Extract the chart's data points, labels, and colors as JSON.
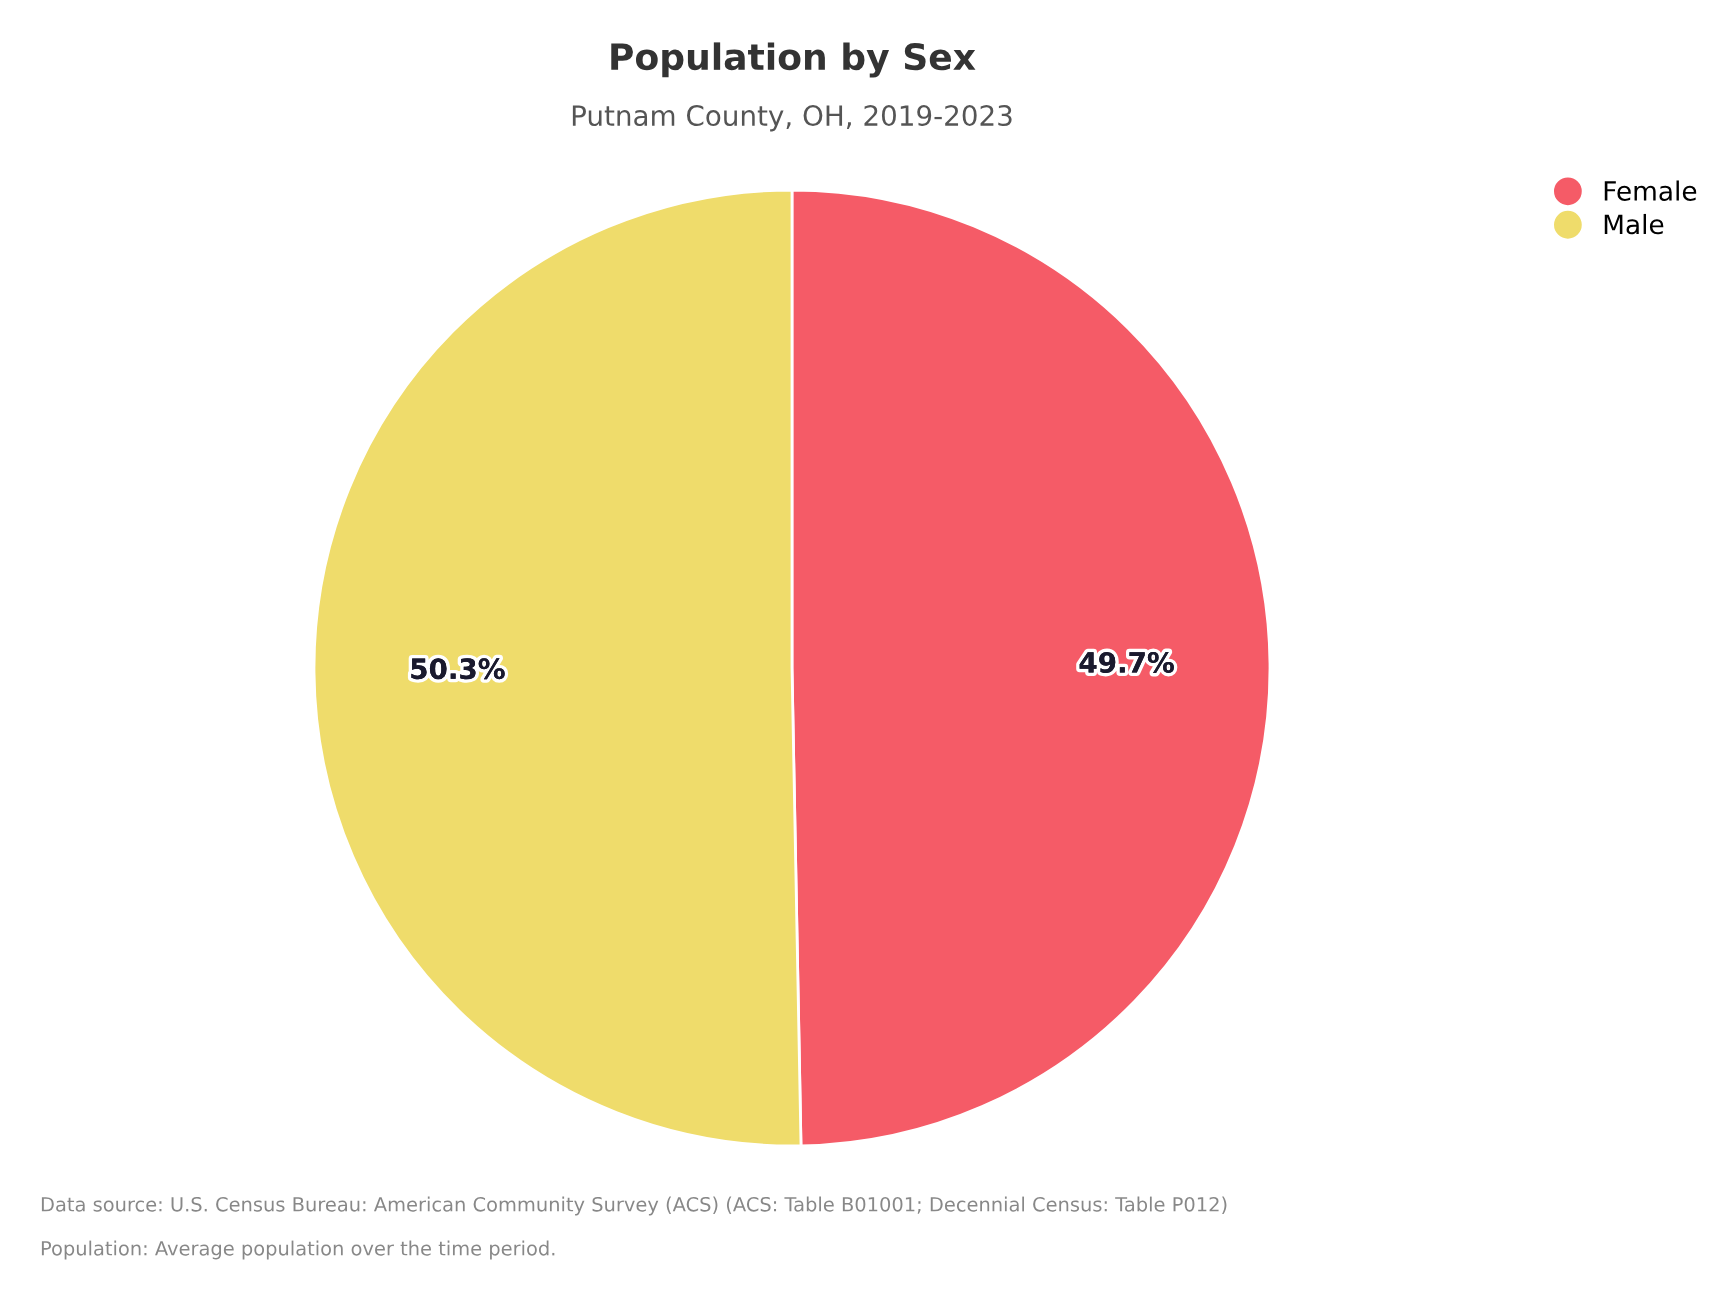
{
  "chart_data": {
    "type": "pie",
    "title": "Population by Sex",
    "subtitle": "Putnam County, OH, 2019-2023",
    "categories": [
      "Female",
      "Male"
    ],
    "values": [
      49.7,
      50.3
    ],
    "colors": [
      "#f55b67",
      "#efdc6b"
    ],
    "value_labels": [
      "49.7%",
      "50.3%"
    ],
    "legend": "top right",
    "annotations": [
      "Data source: U.S. Census Bureau: American Community Survey (ACS) (ACS: Table B01001; Decennial Census: Table P012)",
      "Population: Average population over the time period."
    ]
  }
}
